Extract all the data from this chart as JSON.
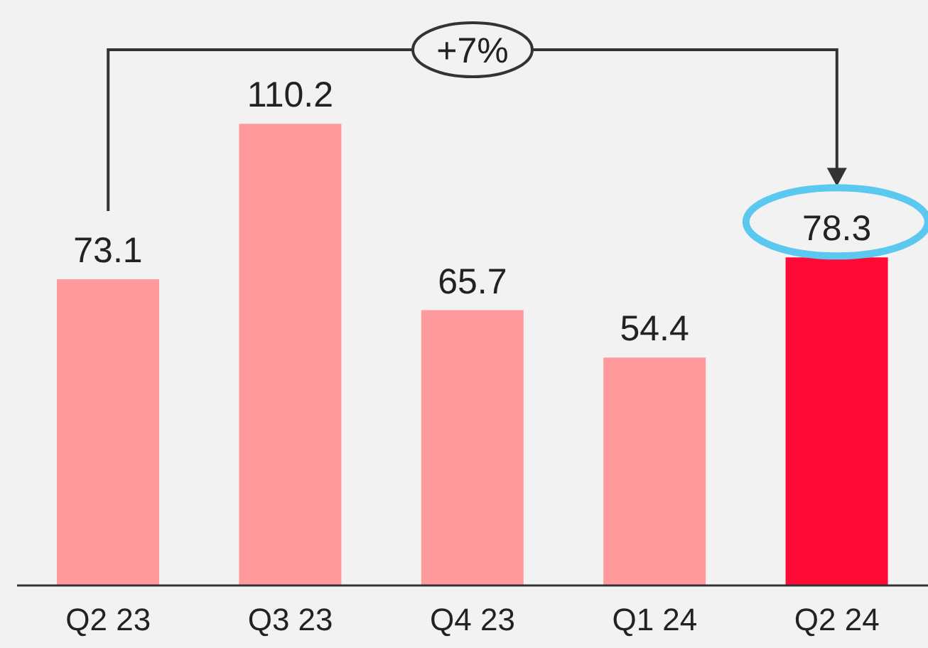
{
  "chart_data": {
    "type": "bar",
    "categories": [
      "Q2 23",
      "Q3 23",
      "Q4 23",
      "Q1 24",
      "Q2 24"
    ],
    "values": [
      73.1,
      110.2,
      65.7,
      54.4,
      78.3
    ],
    "colors": [
      "#fe9a9b",
      "#fe9a9b",
      "#fe9a9b",
      "#fe9a9b",
      "#ff0a36"
    ],
    "data_labels": true,
    "annotations": [
      "+7%"
    ]
  }
}
